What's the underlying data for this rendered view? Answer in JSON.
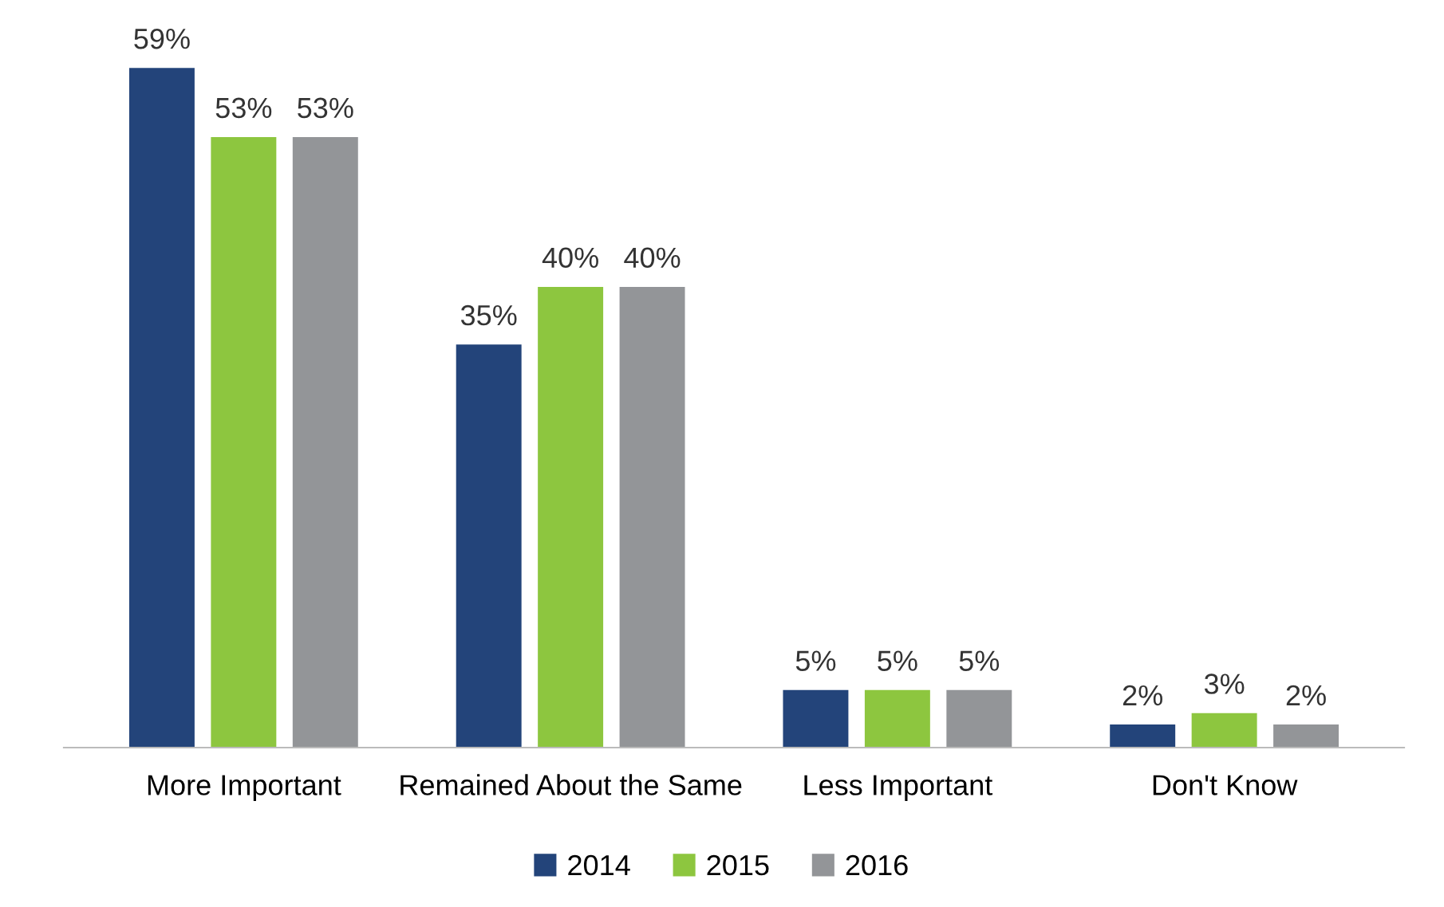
{
  "chart_data": {
    "type": "bar",
    "categories": [
      "More Important",
      "Remained About the Same",
      "Less Important",
      "Don't Know"
    ],
    "series": [
      {
        "name": "2014",
        "color": "#23447a",
        "values": [
          59,
          35,
          5,
          2
        ],
        "value_labels": [
          "59%",
          "35%",
          "5%",
          "2%"
        ]
      },
      {
        "name": "2015",
        "color": "#8dc63f",
        "values": [
          53,
          40,
          5,
          3
        ],
        "value_labels": [
          "53%",
          "40%",
          "5%",
          "3%"
        ]
      },
      {
        "name": "2016",
        "color": "#939598",
        "values": [
          53,
          40,
          5,
          2
        ],
        "value_labels": [
          "53%",
          "40%",
          "5%",
          "2%"
        ]
      }
    ],
    "legend": "bottom",
    "grid": false
  }
}
